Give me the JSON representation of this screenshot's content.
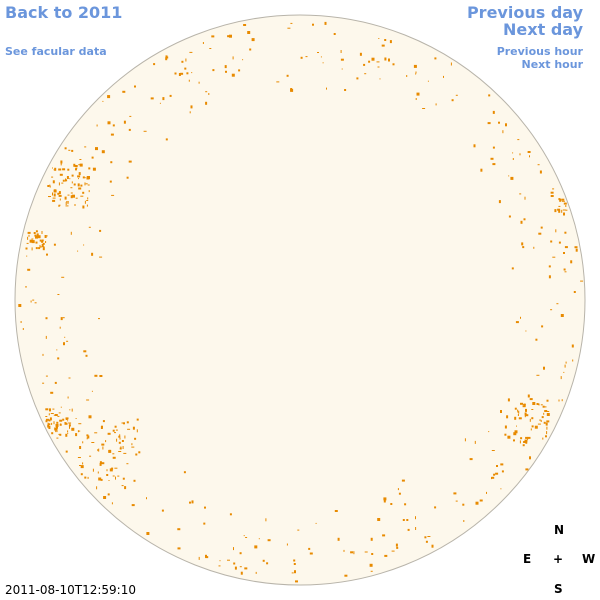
{
  "navigation": {
    "back": "Back to 2011",
    "facular_data": "See facular data",
    "previous_day": "Previous day",
    "next_day": "Next day",
    "previous_hour": "Previous hour",
    "next_hour": "Next hour"
  },
  "timestamp": "2011-08-10T12:59:10",
  "compass": {
    "north": "N",
    "center": "+",
    "east": "E",
    "west": "W",
    "south": "S"
  }
}
